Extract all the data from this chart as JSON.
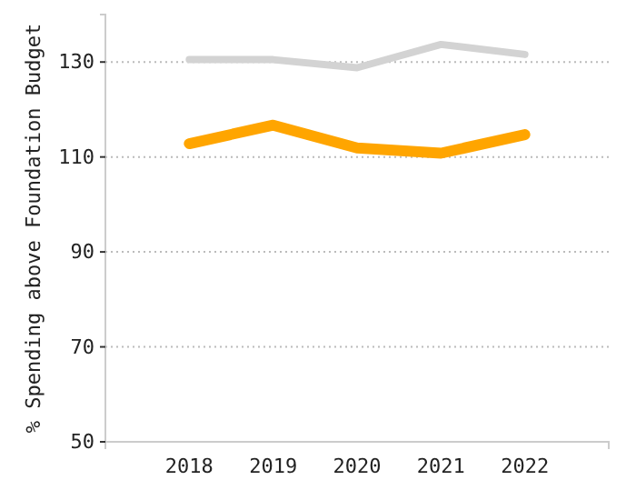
{
  "chart_data": {
    "type": "line",
    "ylabel": "% Spending above Foundation Budget",
    "categories": [
      "2018",
      "2019",
      "2020",
      "2021",
      "2022"
    ],
    "ylim": [
      50,
      140
    ],
    "yticks": [
      50,
      70,
      90,
      110,
      130
    ],
    "grid": "y",
    "marker": "none",
    "series": [
      {
        "color": "#d3d3d3",
        "values": [
          130.5,
          130.5,
          128.8,
          133.7,
          131.6
        ]
      },
      {
        "color": "#ffa500",
        "values": [
          112.8,
          116.7,
          111.9,
          110.8,
          114.7
        ]
      }
    ]
  }
}
